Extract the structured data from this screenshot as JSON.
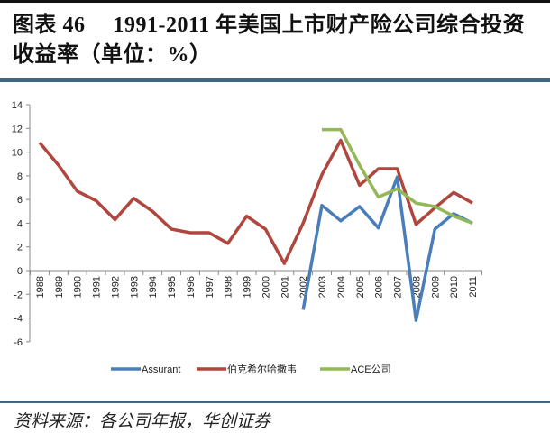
{
  "header": {
    "title_line1": "图表 46 　1991-2011 年美国上市财产险公司综合投资",
    "title_line2": "收益率（单位：%）"
  },
  "footer": {
    "source": "资料来源：各公司年报，华创证券"
  },
  "colors": {
    "assurant": "#4a7ebb",
    "berkshire": "#b0473f",
    "ace": "#93b858",
    "rule": "#3f6682"
  },
  "chart_data": {
    "type": "line",
    "title": "1991-2011 年美国上市财产险公司综合投资收益率（单位：%）",
    "xlabel": "",
    "ylabel": "",
    "ylim": [
      -6,
      14
    ],
    "yticks": [
      14,
      12,
      10,
      8,
      6,
      4,
      2,
      0,
      -2,
      -4,
      -6
    ],
    "grid": false,
    "legend_position": "bottom",
    "categories": [
      "1988",
      "1989",
      "1990",
      "1991",
      "1992",
      "1993",
      "1994",
      "1995",
      "1996",
      "1997",
      "1998",
      "1999",
      "2000",
      "2001",
      "2002",
      "2003",
      "2004",
      "2005",
      "2006",
      "2007",
      "2008",
      "2009",
      "2010",
      "2011"
    ],
    "series": [
      {
        "name": "Assurant",
        "color": "#4a7ebb",
        "values": [
          null,
          null,
          null,
          null,
          null,
          null,
          null,
          null,
          null,
          null,
          null,
          null,
          null,
          null,
          -3.3,
          5.5,
          4.2,
          5.4,
          3.6,
          7.9,
          -4.2,
          3.5,
          4.8,
          4.0
        ]
      },
      {
        "name": "伯克希尔哈撒韦",
        "color": "#b0473f",
        "values": [
          10.8,
          8.9,
          6.7,
          5.9,
          4.3,
          6.1,
          5.0,
          3.5,
          3.2,
          3.2,
          2.3,
          4.6,
          3.5,
          0.6,
          4.0,
          8.1,
          11.0,
          7.2,
          8.6,
          8.6,
          3.9,
          5.3,
          6.6,
          5.7
        ]
      },
      {
        "name": "ACE公司",
        "color": "#93b858",
        "values": [
          null,
          null,
          null,
          null,
          null,
          null,
          null,
          null,
          null,
          null,
          null,
          null,
          null,
          null,
          null,
          11.9,
          11.9,
          8.9,
          6.2,
          6.9,
          5.7,
          5.4,
          4.6,
          4.0
        ]
      }
    ]
  }
}
